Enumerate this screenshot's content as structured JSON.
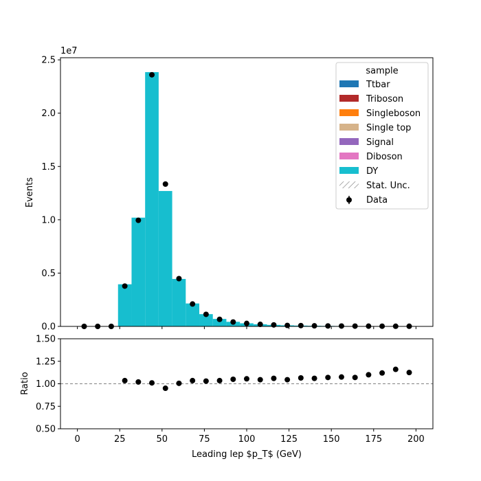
{
  "chart_data": [
    {
      "type": "bar",
      "panel": "main",
      "stacked": true,
      "histogram": true,
      "ylabel": "Events",
      "y_exponent": "1e7",
      "ylim": [
        0,
        25200000.0
      ],
      "xlim": [
        -10,
        210
      ],
      "yticks": [
        0,
        5000000.0,
        10000000.0,
        15000000.0,
        20000000.0,
        25000000.0
      ],
      "ytick_labels": [
        "0.0",
        "0.5",
        "1.0",
        "1.5",
        "2.0",
        "2.5"
      ],
      "bin_edges": [
        0,
        8,
        16,
        24,
        32,
        40,
        48,
        56,
        64,
        72,
        80,
        88,
        96,
        104,
        112,
        120,
        128,
        136,
        144,
        152,
        160,
        168,
        176,
        184,
        192,
        200
      ],
      "series": [
        {
          "name": "Ttbar",
          "color": "#1f77b4",
          "values": [
            0,
            0,
            0,
            0,
            0,
            0,
            0,
            0,
            0,
            0,
            0,
            0,
            0,
            0,
            0,
            0,
            0,
            0,
            0,
            0,
            0,
            0,
            0,
            0,
            0
          ]
        },
        {
          "name": "Triboson",
          "color": "#b22a2a",
          "values": [
            0,
            0,
            0,
            0,
            0,
            0,
            0,
            0,
            0,
            0,
            0,
            0,
            0,
            0,
            0,
            0,
            0,
            0,
            0,
            0,
            0,
            0,
            0,
            0,
            0
          ]
        },
        {
          "name": "Singleboson",
          "color": "#ff7f0e",
          "values": [
            0,
            0,
            0,
            0,
            0,
            0,
            0,
            0,
            0,
            0,
            0,
            0,
            0,
            0,
            0,
            0,
            0,
            0,
            0,
            0,
            0,
            0,
            0,
            0,
            0
          ]
        },
        {
          "name": "Single top",
          "color": "#d6b38a",
          "values": [
            0,
            0,
            0,
            0,
            0,
            0,
            0,
            0,
            0,
            0,
            0,
            0,
            0,
            0,
            0,
            0,
            0,
            0,
            0,
            0,
            0,
            0,
            0,
            0,
            0
          ]
        },
        {
          "name": "Signal",
          "color": "#9467bd",
          "values": [
            0,
            0,
            0,
            0,
            0,
            0,
            0,
            0,
            0,
            0,
            0,
            0,
            0,
            0,
            0,
            0,
            0,
            0,
            0,
            0,
            0,
            0,
            0,
            0,
            0
          ]
        },
        {
          "name": "Diboson",
          "color": "#e377c2",
          "values": [
            0,
            0,
            0,
            0,
            0,
            0,
            0,
            0,
            0,
            0,
            0,
            0,
            0,
            0,
            0,
            0,
            0,
            0,
            0,
            0,
            0,
            0,
            0,
            0,
            0
          ]
        },
        {
          "name": "DY",
          "color": "#17becf",
          "values": [
            0,
            0,
            0,
            3950000,
            10200000,
            23850000,
            12700000,
            4450000,
            2150000,
            1150000,
            700000,
            430000,
            290000,
            200000,
            140000,
            100000,
            75000,
            58000,
            45000,
            36000,
            29000,
            23000,
            19000,
            16000,
            13000
          ]
        }
      ],
      "uncertainty_label": "Stat. Unc.",
      "data": {
        "name": "Data",
        "x": [
          4,
          12,
          20,
          28,
          36,
          44,
          52,
          60,
          68,
          76,
          84,
          92,
          100,
          108,
          116,
          124,
          132,
          140,
          148,
          156,
          164,
          172,
          180,
          188,
          196
        ],
        "y": [
          0,
          0,
          0,
          3780000,
          9950000,
          23600000,
          13350000,
          4480000,
          2100000,
          1130000,
          660000,
          410000,
          280000,
          190000,
          140000,
          90000,
          75000,
          55000,
          43000,
          35000,
          28000,
          23000,
          18000,
          15000,
          13000
        ]
      },
      "legend_title": "sample",
      "legend_loc": "upper right"
    },
    {
      "type": "scatter",
      "panel": "ratio",
      "xlabel": "Leading lep $p_T$ (GeV)",
      "ylabel": "Ratio",
      "ylim": [
        0.5,
        1.5
      ],
      "xlim": [
        -10,
        210
      ],
      "xticks": [
        0,
        25,
        50,
        75,
        100,
        125,
        150,
        175,
        200
      ],
      "xtick_labels": [
        "0",
        "25",
        "50",
        "75",
        "100",
        "125",
        "150",
        "175",
        "200"
      ],
      "yticks": [
        0.5,
        0.75,
        1.0,
        1.25,
        1.5
      ],
      "ytick_labels": [
        "0.50",
        "0.75",
        "1.00",
        "1.25",
        "1.50"
      ],
      "reference_line": 1.0,
      "x": [
        28,
        36,
        44,
        52,
        60,
        68,
        76,
        84,
        92,
        100,
        108,
        116,
        124,
        132,
        140,
        148,
        156,
        164,
        172,
        180,
        188,
        196
      ],
      "y": [
        1.035,
        1.02,
        1.01,
        0.95,
        1.005,
        1.035,
        1.03,
        1.035,
        1.05,
        1.055,
        1.045,
        1.06,
        1.045,
        1.065,
        1.06,
        1.07,
        1.075,
        1.07,
        1.1,
        1.12,
        1.16,
        1.125
      ]
    }
  ],
  "colors": {
    "data_marker": "#000000",
    "reference_line": "#808080",
    "uncertainty_hatch": "#808080"
  }
}
